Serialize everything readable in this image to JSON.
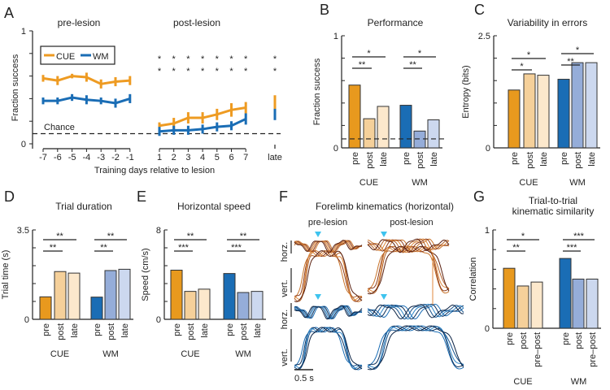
{
  "chart_data": [
    {
      "panel": "A",
      "type": "line",
      "ylabel": "Fraction success",
      "xlabel": "Training days relative to lesion",
      "ylim": [
        0,
        1
      ],
      "ytick_labels": [
        "0",
        "1"
      ],
      "headings": [
        "pre-lesion",
        "post-lesion"
      ],
      "chance_label": "Chance",
      "chance": 0.09,
      "pre_x": [
        "-7",
        "-6",
        "-5",
        "-4",
        "-3",
        "-2",
        "-1"
      ],
      "post_x": [
        "1",
        "2",
        "3",
        "4",
        "5",
        "6",
        "7"
      ],
      "late_x": "late",
      "series": [
        {
          "name": "CUE",
          "color": "#EE9B22",
          "pre": [
            0.58,
            0.56,
            0.6,
            0.59,
            0.53,
            0.55,
            0.56
          ],
          "pre_err": [
            0.03,
            0.04,
            0.02,
            0.04,
            0.04,
            0.04,
            0.04
          ],
          "post": [
            0.16,
            0.18,
            0.23,
            0.23,
            0.26,
            0.3,
            0.32
          ],
          "post_err": [
            0.03,
            0.05,
            0.05,
            0.05,
            0.05,
            0.06,
            0.05
          ],
          "late": 0.36,
          "late_err": 0.07,
          "sig": "*"
        },
        {
          "name": "WM",
          "color": "#1A6DB5",
          "pre": [
            0.38,
            0.38,
            0.41,
            0.39,
            0.38,
            0.36,
            0.4
          ],
          "pre_err": [
            0.03,
            0.03,
            0.03,
            0.04,
            0.03,
            0.04,
            0.04
          ],
          "post": [
            0.11,
            0.12,
            0.12,
            0.13,
            0.15,
            0.16,
            0.22
          ],
          "post_err": [
            0.04,
            0.04,
            0.04,
            0.04,
            0.04,
            0.04,
            0.05
          ],
          "late": 0.26,
          "late_err": 0.05,
          "sig": "*"
        }
      ]
    },
    {
      "panel": "B",
      "type": "bar",
      "title": "Performance",
      "ylabel": "Fraction success",
      "ylim": [
        0,
        1
      ],
      "ytick_labels": [
        "0",
        "1"
      ],
      "chance": 0.08,
      "groups": [
        "CUE",
        "WM"
      ],
      "conditions": [
        "pre",
        "post",
        "late"
      ],
      "values": [
        [
          0.56,
          0.26,
          0.37
        ],
        [
          0.38,
          0.15,
          0.25
        ]
      ],
      "significance": [
        [
          "**",
          "*"
        ],
        [
          "**",
          "*"
        ]
      ]
    },
    {
      "panel": "C",
      "type": "bar",
      "title": "Variability in errors",
      "ylabel": "Entropy (bits)",
      "ylim": [
        0,
        2.5
      ],
      "ytick_labels": [
        "0",
        "2.5"
      ],
      "groups": [
        "CUE",
        "WM"
      ],
      "conditions": [
        "pre",
        "post",
        "late"
      ],
      "values": [
        [
          1.29,
          1.65,
          1.62
        ],
        [
          1.53,
          1.9,
          1.9
        ]
      ],
      "significance": [
        [
          "*",
          "*"
        ],
        [
          "**",
          "*"
        ]
      ]
    },
    {
      "panel": "D",
      "type": "bar",
      "title": "Trial duration",
      "ylabel": "Trial time (s)",
      "ylim": [
        0,
        3.5
      ],
      "ytick_labels": [
        "0",
        "3.5"
      ],
      "groups": [
        "CUE",
        "WM"
      ],
      "conditions": [
        "pre",
        "post",
        "late"
      ],
      "values": [
        [
          0.88,
          1.87,
          1.81
        ],
        [
          0.87,
          1.91,
          1.96
        ]
      ],
      "significance": [
        [
          "**",
          "**"
        ],
        [
          "**",
          "**"
        ]
      ]
    },
    {
      "panel": "E",
      "type": "bar",
      "title": "Horizontal speed",
      "ylabel": "Speed (cm/s)",
      "ylim": [
        0,
        8
      ],
      "ytick_labels": [
        "0",
        "8"
      ],
      "groups": [
        "CUE",
        "WM"
      ],
      "conditions": [
        "pre",
        "post",
        "late"
      ],
      "values": [
        [
          4.4,
          2.5,
          2.7
        ],
        [
          4.1,
          2.4,
          2.5
        ]
      ],
      "significance": [
        [
          "***",
          "**"
        ],
        [
          "***",
          "**"
        ]
      ]
    },
    {
      "panel": "G",
      "type": "bar",
      "title": "Trial-to-trial",
      "title2": "kinematic similarity",
      "ylabel": "Correlation",
      "ylim": [
        0,
        1
      ],
      "ytick_labels": [
        "0",
        "1"
      ],
      "groups": [
        "CUE",
        "WM"
      ],
      "conditions": [
        "pre",
        "post",
        "pre–post"
      ],
      "values": [
        [
          0.61,
          0.43,
          0.47
        ],
        [
          0.71,
          0.5,
          0.5
        ]
      ],
      "significance": [
        [
          "**",
          "*"
        ],
        [
          "***",
          "***"
        ]
      ]
    }
  ],
  "panel_f": {
    "label": "F",
    "title": "Forelimb kinematics (horizontal)",
    "headings": [
      "pre-lesion",
      "post-lesion"
    ],
    "row_labels": [
      "horz.",
      "vert.",
      "horz.",
      "vert."
    ],
    "scale_bar": "0.5 s",
    "cue_marker_color": "#3EC3EE"
  },
  "colors": {
    "cue": [
      "#E8991E",
      "#F5D09A",
      "#FCE8CC"
    ],
    "wm": [
      "#1A6DB5",
      "#95ADD9",
      "#CCD8EF"
    ],
    "individual": "#9A9A9A"
  }
}
